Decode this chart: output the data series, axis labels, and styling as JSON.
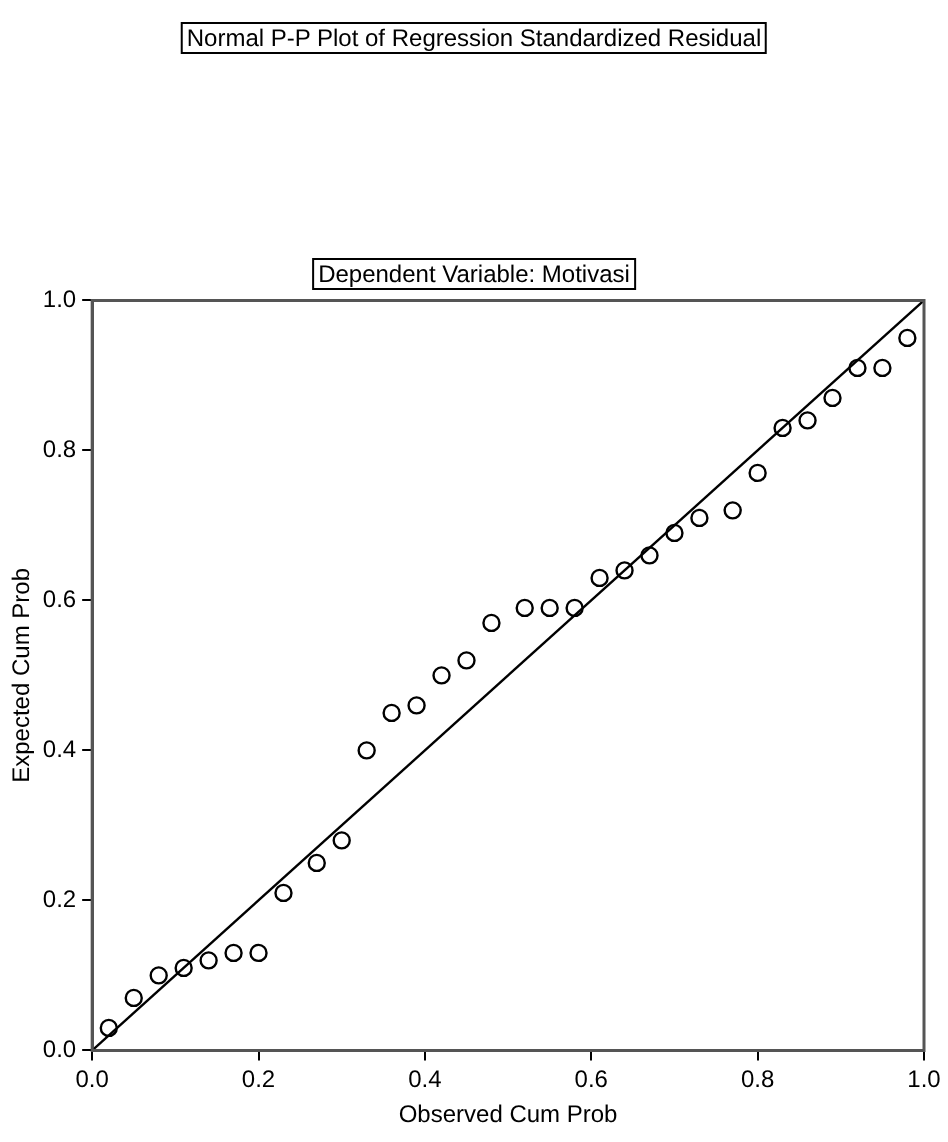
{
  "chart_data": {
    "type": "scatter",
    "title": "Normal P-P Plot of Regression Standardized Residual",
    "subtitle": "Dependent Variable: Motivasi",
    "xlabel": "Observed Cum Prob",
    "ylabel": "Expected Cum Prob",
    "x": [
      0.02,
      0.05,
      0.08,
      0.11,
      0.14,
      0.17,
      0.2,
      0.23,
      0.27,
      0.3,
      0.33,
      0.36,
      0.39,
      0.42,
      0.45,
      0.48,
      0.52,
      0.55,
      0.58,
      0.61,
      0.64,
      0.67,
      0.7,
      0.73,
      0.77,
      0.8,
      0.83,
      0.86,
      0.89,
      0.92,
      0.95,
      0.98
    ],
    "series": [
      {
        "color": "#000000",
        "marker": "circle",
        "values": [
          0.03,
          0.07,
          0.1,
          0.11,
          0.12,
          0.13,
          0.13,
          0.21,
          0.25,
          0.28,
          0.4,
          0.45,
          0.46,
          0.5,
          0.52,
          0.57,
          0.59,
          0.59,
          0.59,
          0.63,
          0.64,
          0.66,
          0.69,
          0.71,
          0.72,
          0.77,
          0.83,
          0.84,
          0.87,
          0.91,
          0.91,
          0.95
        ]
      },
      {
        "type": "line",
        "color": "#000000",
        "marker": "none",
        "x": [
          0,
          1
        ],
        "values": [
          0,
          1
        ]
      }
    ],
    "xlim": [
      0,
      1
    ],
    "ylim": [
      0,
      1
    ],
    "xticks": [
      {
        "value": 0,
        "label": "0.0"
      },
      {
        "value": 0.2,
        "label": "0.2"
      },
      {
        "value": 0.4,
        "label": "0.4"
      },
      {
        "value": 0.6,
        "label": "0.6"
      },
      {
        "value": 0.8,
        "label": "0.8"
      },
      {
        "value": 1,
        "label": "1.0"
      }
    ],
    "yticks": [
      {
        "value": 0,
        "label": "0.0"
      },
      {
        "value": 0.2,
        "label": "0.2"
      },
      {
        "value": 0.4,
        "label": "0.4"
      },
      {
        "value": 0.6,
        "label": "0.6"
      },
      {
        "value": 0.8,
        "label": "0.8"
      },
      {
        "value": 1,
        "label": "1.0"
      }
    ],
    "grid": false,
    "legend": false
  }
}
